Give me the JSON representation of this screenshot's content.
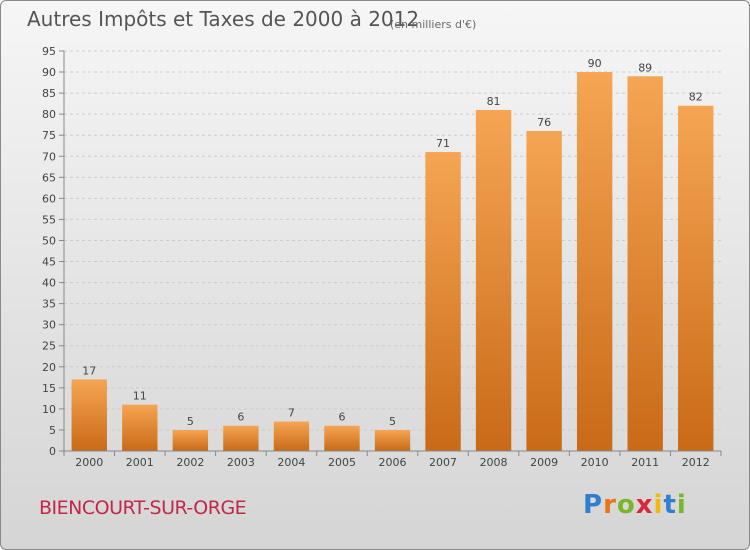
{
  "header": {
    "title": "Autres Impôts et Taxes de 2000 à 2012",
    "subtitle": "(en milliers d'€)"
  },
  "footer": {
    "commune": "BIENCOURT-SUR-ORGE",
    "logo": [
      "P",
      "r",
      "o",
      "x",
      "i",
      "t",
      "i"
    ]
  },
  "colors": {
    "bar_top": "#f5a553",
    "bar_bottom": "#c96a17",
    "axis": "#888888",
    "grid": "#cccccc",
    "label": "#444444"
  },
  "chart_data": {
    "type": "bar",
    "title": "Autres Impôts et Taxes de 2000 à 2012",
    "categories": [
      "2000",
      "2001",
      "2002",
      "2003",
      "2004",
      "2005",
      "2006",
      "2007",
      "2008",
      "2009",
      "2010",
      "2011",
      "2012"
    ],
    "values": [
      17,
      11,
      5,
      6,
      7,
      6,
      5,
      71,
      81,
      76,
      90,
      89,
      82
    ],
    "ylim": [
      0,
      95
    ],
    "yticks": [
      0,
      5,
      10,
      15,
      20,
      25,
      30,
      35,
      40,
      45,
      50,
      55,
      60,
      65,
      70,
      75,
      80,
      85,
      90,
      95
    ],
    "grid": true,
    "data_labels": true
  }
}
